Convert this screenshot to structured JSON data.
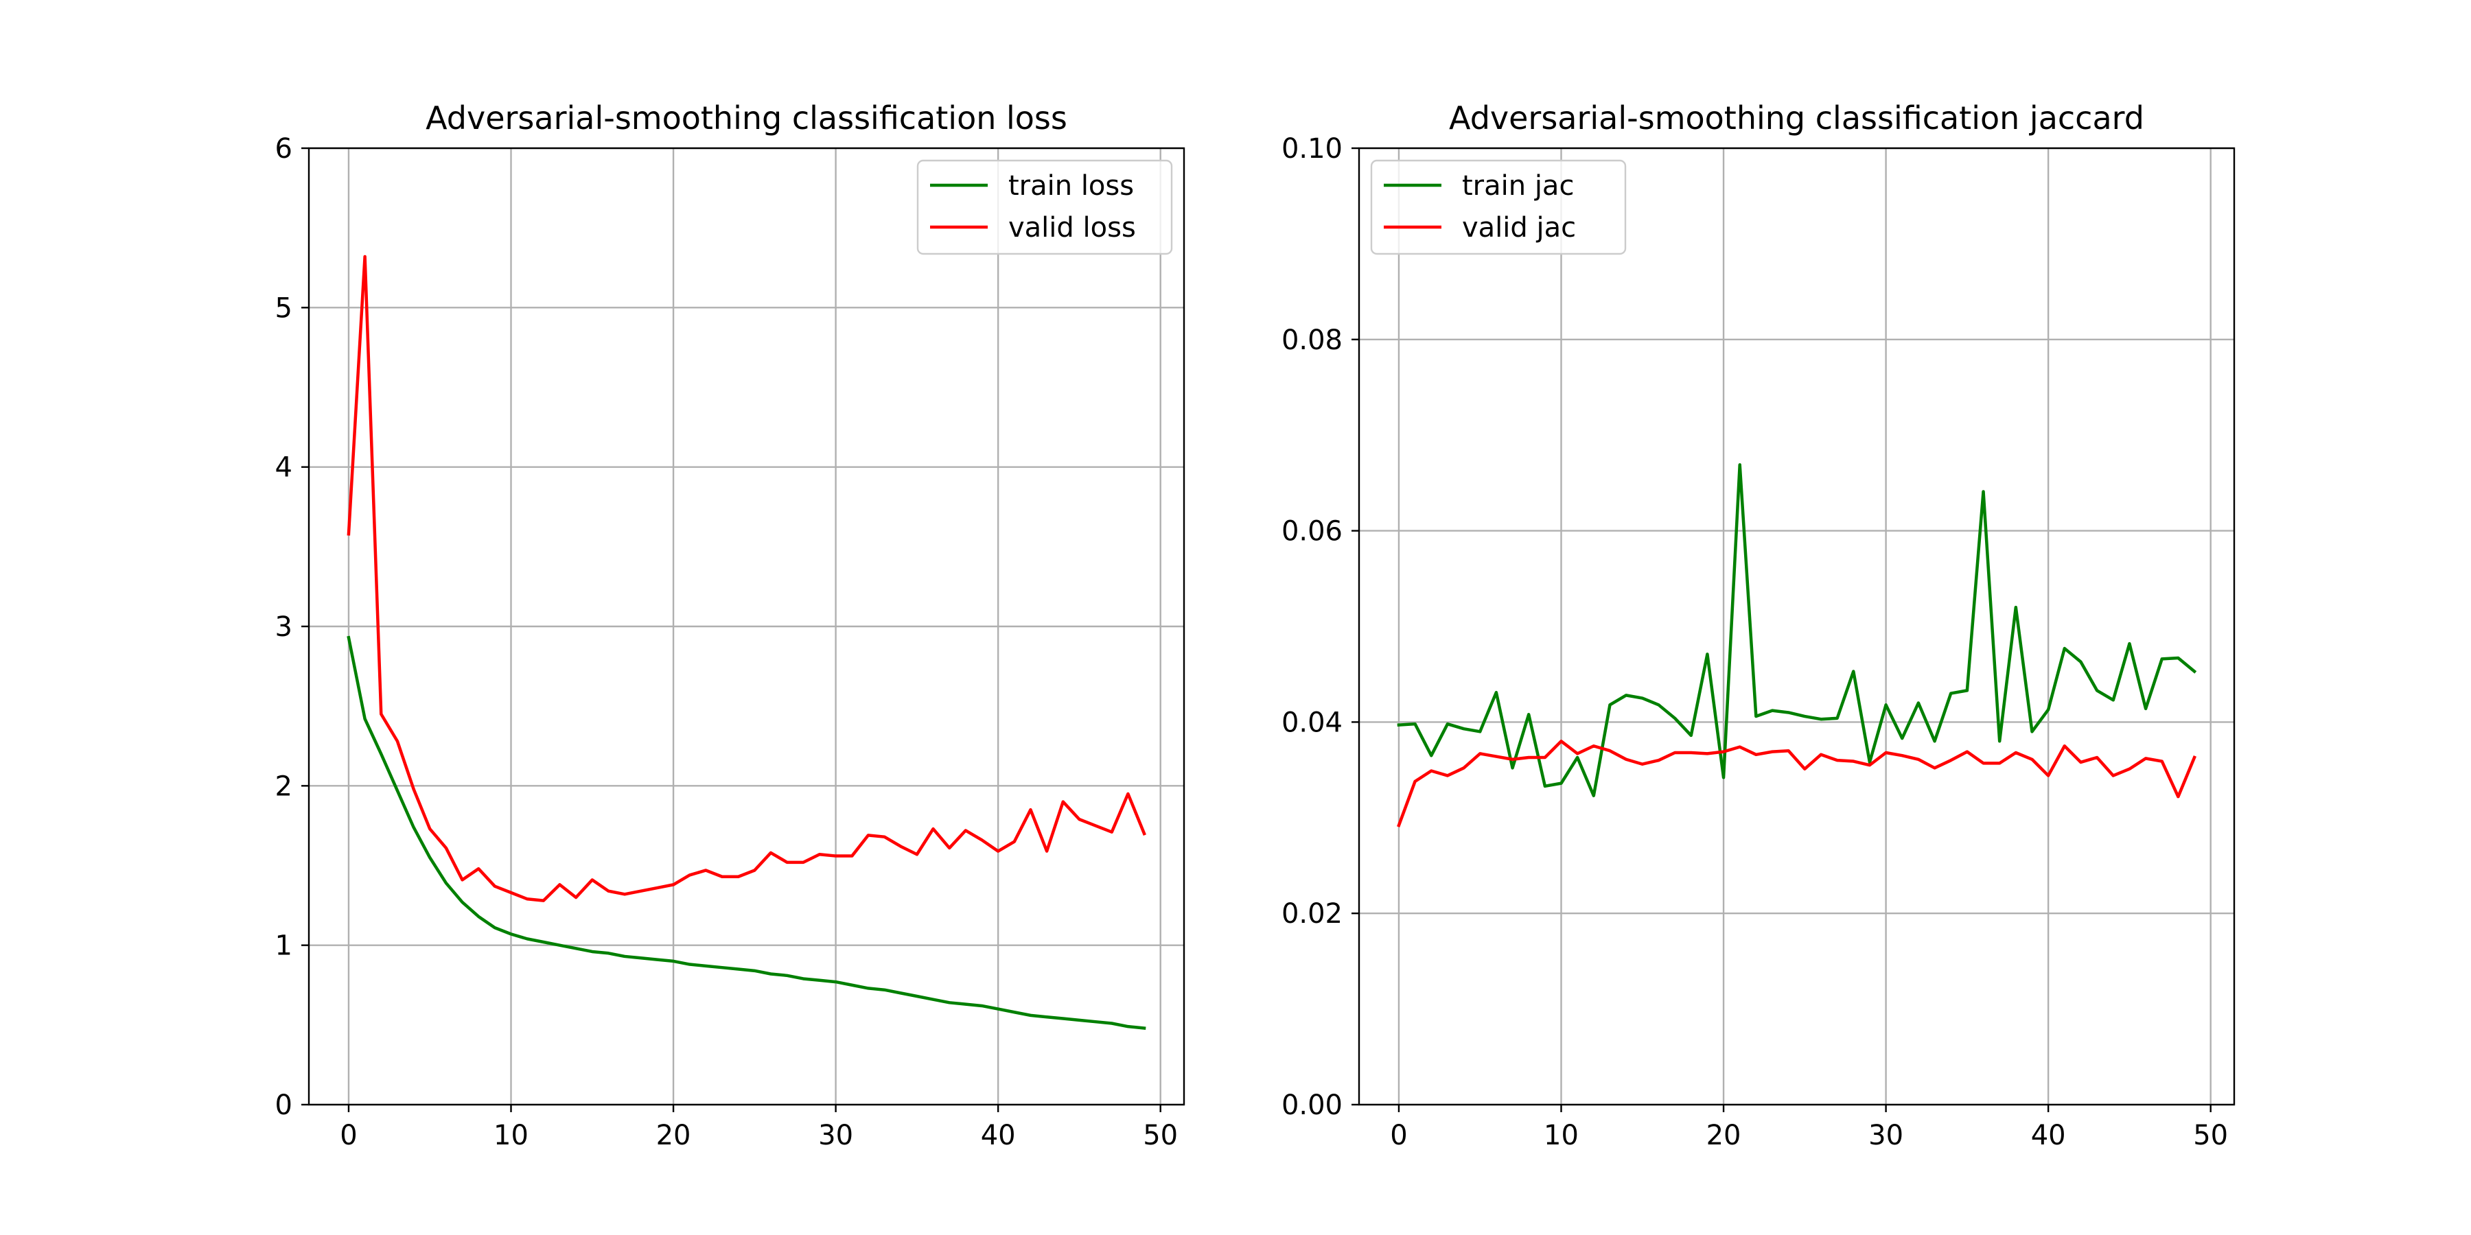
{
  "chart_data": [
    {
      "type": "line",
      "title": "Adversarial-smoothing classification loss",
      "xlabel": "",
      "ylabel": "",
      "xlim": [
        -2.45,
        51.45
      ],
      "ylim": [
        0,
        6
      ],
      "xticks": [
        0,
        10,
        20,
        30,
        40,
        50
      ],
      "yticks": [
        0,
        1,
        2,
        3,
        4,
        5,
        6
      ],
      "x_tick_labels": [
        "0",
        "10",
        "20",
        "30",
        "40",
        "50"
      ],
      "y_tick_labels": [
        "0",
        "1",
        "2",
        "3",
        "4",
        "5",
        "6"
      ],
      "grid": true,
      "legend_position": "top-right",
      "x": [
        0,
        1,
        2,
        3,
        4,
        5,
        6,
        7,
        8,
        9,
        10,
        11,
        12,
        13,
        14,
        15,
        16,
        17,
        18,
        19,
        20,
        21,
        22,
        23,
        24,
        25,
        26,
        27,
        28,
        29,
        30,
        31,
        32,
        33,
        34,
        35,
        36,
        37,
        38,
        39,
        40,
        41,
        42,
        43,
        44,
        45,
        46,
        47,
        48,
        49
      ],
      "series": [
        {
          "name": "train loss",
          "color": "#008000",
          "values": [
            2.93,
            2.42,
            2.2,
            1.97,
            1.74,
            1.55,
            1.39,
            1.27,
            1.18,
            1.11,
            1.07,
            1.04,
            1.02,
            1.0,
            0.98,
            0.96,
            0.95,
            0.93,
            0.92,
            0.91,
            0.9,
            0.88,
            0.87,
            0.86,
            0.85,
            0.84,
            0.82,
            0.81,
            0.79,
            0.78,
            0.77,
            0.75,
            0.73,
            0.72,
            0.7,
            0.68,
            0.66,
            0.64,
            0.63,
            0.62,
            0.6,
            0.58,
            0.56,
            0.55,
            0.54,
            0.53,
            0.52,
            0.51,
            0.49,
            0.48
          ]
        },
        {
          "name": "valid loss",
          "color": "#ff0000",
          "values": [
            3.58,
            5.32,
            2.45,
            2.28,
            1.98,
            1.73,
            1.61,
            1.41,
            1.48,
            1.37,
            1.33,
            1.29,
            1.28,
            1.38,
            1.3,
            1.41,
            1.34,
            1.32,
            1.34,
            1.36,
            1.38,
            1.44,
            1.47,
            1.43,
            1.43,
            1.47,
            1.58,
            1.52,
            1.52,
            1.57,
            1.56,
            1.56,
            1.69,
            1.68,
            1.62,
            1.57,
            1.73,
            1.61,
            1.72,
            1.66,
            1.59,
            1.65,
            1.85,
            1.59,
            1.9,
            1.79,
            1.75,
            1.71,
            1.95,
            1.7
          ]
        }
      ]
    },
    {
      "type": "line",
      "title": "Adversarial-smoothing classification jaccard",
      "xlabel": "",
      "ylabel": "",
      "xlim": [
        -2.45,
        51.45
      ],
      "ylim": [
        0,
        0.1
      ],
      "xticks": [
        0,
        10,
        20,
        30,
        40,
        50
      ],
      "yticks": [
        0,
        0.02,
        0.04,
        0.06,
        0.08,
        0.1
      ],
      "x_tick_labels": [
        "0",
        "10",
        "20",
        "30",
        "40",
        "50"
      ],
      "y_tick_labels": [
        "0.00",
        "0.02",
        "0.04",
        "0.06",
        "0.08",
        "0.10"
      ],
      "grid": true,
      "legend_position": "top-left",
      "x": [
        0,
        1,
        2,
        3,
        4,
        5,
        6,
        7,
        8,
        9,
        10,
        11,
        12,
        13,
        14,
        15,
        16,
        17,
        18,
        19,
        20,
        21,
        22,
        23,
        24,
        25,
        26,
        27,
        28,
        29,
        30,
        31,
        32,
        33,
        34,
        35,
        36,
        37,
        38,
        39,
        40,
        41,
        42,
        43,
        44,
        45,
        46,
        47,
        48,
        49
      ],
      "series": [
        {
          "name": "train jac",
          "color": "#008000",
          "values": [
            0.0397,
            0.0398,
            0.0365,
            0.0398,
            0.0393,
            0.039,
            0.0431,
            0.0352,
            0.0408,
            0.0333,
            0.0336,
            0.0363,
            0.0323,
            0.0418,
            0.0428,
            0.0425,
            0.0418,
            0.0404,
            0.0386,
            0.0471,
            0.0342,
            0.0669,
            0.0406,
            0.0412,
            0.041,
            0.0406,
            0.0403,
            0.0404,
            0.0453,
            0.0358,
            0.0418,
            0.0383,
            0.042,
            0.038,
            0.043,
            0.0433,
            0.0641,
            0.038,
            0.052,
            0.039,
            0.0413,
            0.0477,
            0.0463,
            0.0433,
            0.0423,
            0.0482,
            0.0414,
            0.0466,
            0.0467,
            0.0453
          ]
        },
        {
          "name": "valid jac",
          "color": "#ff0000",
          "values": [
            0.0292,
            0.0338,
            0.0349,
            0.0344,
            0.0352,
            0.0367,
            0.0364,
            0.0361,
            0.0363,
            0.0363,
            0.038,
            0.0367,
            0.0375,
            0.037,
            0.0361,
            0.0356,
            0.036,
            0.0368,
            0.0368,
            0.0367,
            0.0369,
            0.0374,
            0.0366,
            0.0369,
            0.037,
            0.0351,
            0.0366,
            0.036,
            0.0359,
            0.0355,
            0.0368,
            0.0365,
            0.0361,
            0.0352,
            0.036,
            0.0369,
            0.0357,
            0.0357,
            0.0368,
            0.0361,
            0.0344,
            0.0375,
            0.0358,
            0.0363,
            0.0344,
            0.0351,
            0.0362,
            0.0359,
            0.0322,
            0.0363
          ]
        }
      ]
    }
  ]
}
